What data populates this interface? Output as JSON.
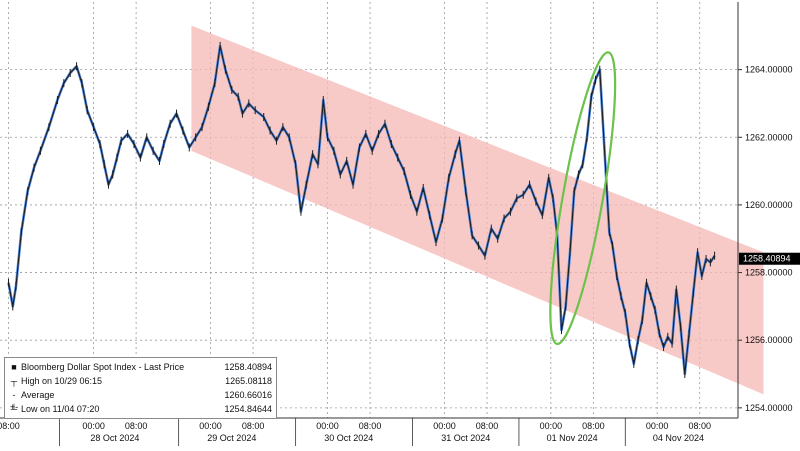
{
  "chart_data": {
    "type": "line",
    "series": [
      {
        "name": "Bloomberg Dollar Spot Index - Last Price",
        "color": "#1d1d1d",
        "highlight": "#4d86e0",
        "points": [
          [
            0,
            1257.7
          ],
          [
            0.2,
            1257.0
          ],
          [
            0.35,
            1257.6
          ],
          [
            0.6,
            1259.2
          ],
          [
            0.9,
            1260.4
          ],
          [
            1.2,
            1261.1
          ],
          [
            1.5,
            1261.6
          ],
          [
            1.9,
            1262.3
          ],
          [
            2.3,
            1263.1
          ],
          [
            2.6,
            1263.6
          ],
          [
            2.9,
            1263.9
          ],
          [
            3.2,
            1264.1
          ],
          [
            3.45,
            1263.6
          ],
          [
            3.7,
            1262.8
          ],
          [
            4.0,
            1262.3
          ],
          [
            4.3,
            1261.8
          ],
          [
            4.5,
            1261.2
          ],
          [
            4.7,
            1260.6
          ],
          [
            4.9,
            1260.9
          ],
          [
            5.1,
            1261.4
          ],
          [
            5.3,
            1261.9
          ],
          [
            5.6,
            1262.1
          ],
          [
            5.9,
            1261.8
          ],
          [
            6.2,
            1261.4
          ],
          [
            6.5,
            1262.0
          ],
          [
            6.8,
            1261.6
          ],
          [
            7.1,
            1261.3
          ],
          [
            7.3,
            1261.8
          ],
          [
            7.6,
            1262.4
          ],
          [
            7.9,
            1262.7
          ],
          [
            8.2,
            1262.2
          ],
          [
            8.5,
            1261.7
          ],
          [
            8.8,
            1262.0
          ],
          [
            9.1,
            1262.3
          ],
          [
            9.4,
            1262.9
          ],
          [
            9.7,
            1263.6
          ],
          [
            9.95,
            1264.7
          ],
          [
            10.2,
            1264.0
          ],
          [
            10.5,
            1263.4
          ],
          [
            10.8,
            1263.2
          ],
          [
            11.0,
            1262.7
          ],
          [
            11.3,
            1263.0
          ],
          [
            11.6,
            1262.8
          ],
          [
            12.0,
            1262.6
          ],
          [
            12.3,
            1262.2
          ],
          [
            12.6,
            1261.9
          ],
          [
            12.9,
            1262.3
          ],
          [
            13.2,
            1262.0
          ],
          [
            13.5,
            1261.2
          ],
          [
            13.75,
            1259.8
          ],
          [
            14.0,
            1260.6
          ],
          [
            14.3,
            1261.5
          ],
          [
            14.55,
            1261.2
          ],
          [
            14.8,
            1263.1
          ],
          [
            15.0,
            1262.0
          ],
          [
            15.3,
            1261.6
          ],
          [
            15.6,
            1260.9
          ],
          [
            15.9,
            1261.3
          ],
          [
            16.2,
            1260.6
          ],
          [
            16.5,
            1261.7
          ],
          [
            16.8,
            1262.1
          ],
          [
            17.1,
            1261.6
          ],
          [
            17.4,
            1262.1
          ],
          [
            17.7,
            1262.4
          ],
          [
            18.0,
            1261.8
          ],
          [
            18.3,
            1261.4
          ],
          [
            18.6,
            1261.0
          ],
          [
            18.9,
            1260.3
          ],
          [
            19.2,
            1259.8
          ],
          [
            19.5,
            1260.5
          ],
          [
            19.8,
            1259.7
          ],
          [
            20.1,
            1258.9
          ],
          [
            20.4,
            1259.6
          ],
          [
            20.7,
            1260.8
          ],
          [
            21.0,
            1261.5
          ],
          [
            21.2,
            1261.9
          ],
          [
            21.5,
            1260.4
          ],
          [
            21.8,
            1259.1
          ],
          [
            22.1,
            1258.8
          ],
          [
            22.4,
            1258.5
          ],
          [
            22.7,
            1259.3
          ],
          [
            23.0,
            1259.0
          ],
          [
            23.3,
            1259.6
          ],
          [
            23.6,
            1259.8
          ],
          [
            23.9,
            1260.2
          ],
          [
            24.2,
            1260.3
          ],
          [
            24.5,
            1260.6
          ],
          [
            24.8,
            1260.1
          ],
          [
            25.1,
            1259.7
          ],
          [
            25.4,
            1260.8
          ],
          [
            25.6,
            1260.2
          ],
          [
            25.8,
            1259.1
          ],
          [
            26.0,
            1256.3
          ],
          [
            26.2,
            1257.0
          ],
          [
            26.4,
            1258.6
          ],
          [
            26.6,
            1260.4
          ],
          [
            26.8,
            1260.9
          ],
          [
            27.0,
            1261.2
          ],
          [
            27.2,
            1262.0
          ],
          [
            27.4,
            1263.2
          ],
          [
            27.6,
            1263.7
          ],
          [
            27.8,
            1264.0
          ],
          [
            28.25,
            1259.2
          ],
          [
            28.4,
            1258.8
          ],
          [
            28.6,
            1257.9
          ],
          [
            28.8,
            1257.3
          ],
          [
            29.0,
            1256.8
          ],
          [
            29.2,
            1255.9
          ],
          [
            29.4,
            1255.3
          ],
          [
            29.6,
            1256.0
          ],
          [
            29.8,
            1256.6
          ],
          [
            30.0,
            1257.7
          ],
          [
            30.2,
            1257.3
          ],
          [
            30.4,
            1256.9
          ],
          [
            30.6,
            1256.2
          ],
          [
            30.8,
            1255.8
          ],
          [
            31.0,
            1256.1
          ],
          [
            31.2,
            1255.9
          ],
          [
            31.4,
            1257.5
          ],
          [
            31.6,
            1256.4
          ],
          [
            31.8,
            1255.0
          ],
          [
            32.0,
            1256.2
          ],
          [
            32.2,
            1257.4
          ],
          [
            32.4,
            1258.6
          ],
          [
            32.6,
            1257.9
          ],
          [
            32.8,
            1258.4
          ],
          [
            33.0,
            1258.3
          ],
          [
            33.2,
            1258.5
          ]
        ]
      }
    ],
    "x_range": [
      -0.4,
      34.3
    ],
    "ylim": [
      1253.7,
      1266.0
    ],
    "y_ticks": [
      1254.0,
      1256.0,
      1258.0,
      1260.0,
      1262.0,
      1264.0
    ],
    "y_tick_labels": [
      "1254.00000",
      "1256.00000",
      "1258.00000",
      "1260.00000",
      "1262.00000",
      "1264.00000"
    ],
    "x_ticks": [
      {
        "x": 0.0,
        "label": "08:00"
      },
      {
        "x": 4.0,
        "label": "00:00"
      },
      {
        "x": 6.0,
        "label": "08:00"
      },
      {
        "x": 9.5,
        "label": "00:00"
      },
      {
        "x": 11.5,
        "label": "08:00"
      },
      {
        "x": 15.0,
        "label": "00:00"
      },
      {
        "x": 17.0,
        "label": "08:00"
      },
      {
        "x": 20.5,
        "label": "00:00"
      },
      {
        "x": 22.5,
        "label": "08:00"
      },
      {
        "x": 25.5,
        "label": "00:00"
      },
      {
        "x": 27.5,
        "label": "08:00"
      },
      {
        "x": 30.5,
        "label": "00:00"
      },
      {
        "x": 32.5,
        "label": "08:00"
      }
    ],
    "day_labels": [
      {
        "x": 5.0,
        "label": "28 Oct 2024"
      },
      {
        "x": 10.5,
        "label": "29 Oct 2024"
      },
      {
        "x": 16.0,
        "label": "30 Oct 2024"
      },
      {
        "x": 21.5,
        "label": "31 Oct 2024"
      },
      {
        "x": 26.5,
        "label": "01 Nov 2024"
      },
      {
        "x": 31.5,
        "label": "04 Nov 2024"
      }
    ],
    "day_separators": [
      2.4,
      8.0,
      13.5,
      19.0,
      24.0,
      29.0
    ],
    "channel": {
      "color": "#f4b8b6",
      "upper_start": [
        8.6,
        1265.3
      ],
      "upper_end": [
        35.5,
        1258.6
      ],
      "lower_start": [
        8.6,
        1261.6
      ],
      "lower_end": [
        35.5,
        1254.4
      ]
    },
    "ellipse": {
      "color": "#6cc24a",
      "center": [
        27.0,
        1260.2
      ],
      "angle_deg": -80
    },
    "last_price_tag": {
      "value": 1258.40894,
      "label": "1258.40894",
      "color": "#000000",
      "text_color": "#ffffff"
    },
    "grid": true,
    "legend_position": "bottom-left"
  },
  "legend": {
    "title_label": "Bloomberg Dollar Spot Index - Last Price",
    "title_value": "1258.40894",
    "high_label": "High on 10/29 06:15",
    "high_value": "1265.08118",
    "avg_label": "Average",
    "avg_value": "1260.66016",
    "low_label": "Low on 11/04 07:20",
    "low_value": "1254.84644"
  }
}
